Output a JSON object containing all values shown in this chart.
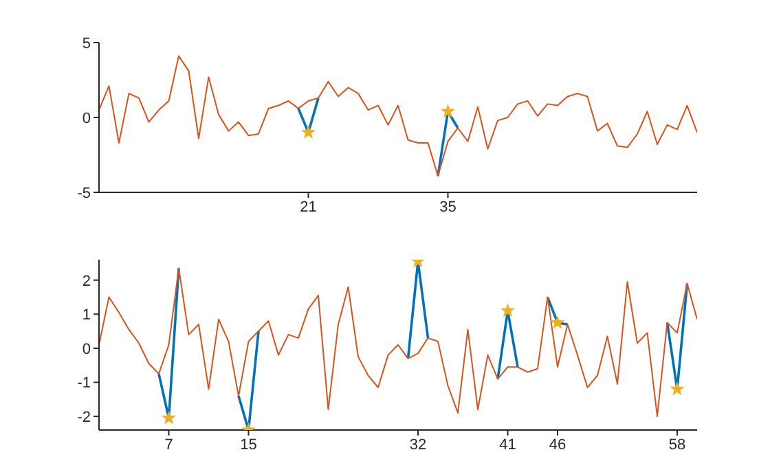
{
  "chart_data": [
    {
      "type": "line",
      "x": [
        0,
        1,
        2,
        3,
        4,
        5,
        6,
        7,
        8,
        9,
        10,
        11,
        12,
        13,
        14,
        15,
        16,
        17,
        18,
        19,
        20,
        21,
        22,
        23,
        24,
        25,
        26,
        27,
        28,
        29,
        30,
        31,
        32,
        33,
        34,
        35,
        36,
        37,
        38,
        39,
        40,
        41,
        42,
        43,
        44,
        45,
        46,
        47,
        48,
        49,
        50,
        51,
        52,
        53,
        54,
        55,
        56,
        57,
        58,
        59,
        60
      ],
      "xlim": [
        0,
        60
      ],
      "xticks": [
        21,
        35
      ],
      "ylim": [
        -5,
        5
      ],
      "yticks": [
        -5,
        0,
        5
      ],
      "series": [
        {
          "color": "#0072bd",
          "values": [
            null,
            null,
            null,
            null,
            null,
            null,
            null,
            null,
            null,
            null,
            null,
            null,
            null,
            null,
            null,
            null,
            null,
            null,
            null,
            null,
            0.6,
            -1.0,
            1.3,
            null,
            null,
            null,
            null,
            null,
            null,
            null,
            null,
            null,
            null,
            null,
            -3.9,
            0.4,
            -0.7,
            null,
            null,
            null,
            null,
            null,
            null,
            null,
            null,
            null,
            null,
            null,
            null,
            null,
            null,
            null,
            null,
            null,
            null,
            null,
            null,
            null,
            null,
            null,
            null
          ]
        },
        {
          "color": "#d95319",
          "values": [
            0.5,
            2.1,
            -1.7,
            1.6,
            1.3,
            -0.3,
            0.5,
            1.1,
            4.1,
            3.1,
            -1.4,
            2.7,
            0.2,
            -0.9,
            -0.3,
            -1.2,
            -1.1,
            0.6,
            0.8,
            1.1,
            0.6,
            1.1,
            1.3,
            2.4,
            1.4,
            2.0,
            1.6,
            0.5,
            0.8,
            -0.5,
            0.8,
            -1.5,
            -1.7,
            -1.7,
            -3.9,
            -1.6,
            -0.7,
            -1.6,
            0.7,
            -2.1,
            -0.2,
            0.0,
            0.9,
            1.1,
            0.1,
            0.9,
            0.8,
            1.4,
            1.6,
            1.4,
            -0.9,
            -0.4,
            -1.9,
            -2.0,
            -1.1,
            0.4,
            -1.8,
            -0.5,
            -0.8,
            0.8,
            -1.0
          ]
        },
        {
          "type": "scatter",
          "color": "#edb120",
          "marker": "star",
          "x": [
            21,
            35
          ],
          "values": [
            -1.0,
            0.4
          ]
        }
      ]
    },
    {
      "type": "line",
      "x": [
        0,
        1,
        2,
        3,
        4,
        5,
        6,
        7,
        8,
        9,
        10,
        11,
        12,
        13,
        14,
        15,
        16,
        17,
        18,
        19,
        20,
        21,
        22,
        23,
        24,
        25,
        26,
        27,
        28,
        29,
        30,
        31,
        32,
        33,
        34,
        35,
        36,
        37,
        38,
        39,
        40,
        41,
        42,
        43,
        44,
        45,
        46,
        47,
        48,
        49,
        50,
        51,
        52,
        53,
        54,
        55,
        56,
        57,
        58,
        59,
        60
      ],
      "xlim": [
        0,
        60
      ],
      "xticks": [
        7,
        15,
        32,
        41,
        46,
        58
      ],
      "ylim": [
        -2.4,
        2.6
      ],
      "yticks": [
        -2,
        -1,
        0,
        1,
        2
      ],
      "series": [
        {
          "color": "#0072bd",
          "values": [
            null,
            null,
            null,
            null,
            null,
            null,
            -0.75,
            -2.05,
            2.35,
            null,
            null,
            null,
            null,
            null,
            -1.4,
            -2.4,
            0.5,
            null,
            null,
            null,
            null,
            null,
            null,
            null,
            null,
            null,
            null,
            null,
            null,
            null,
            null,
            -0.3,
            2.55,
            0.3,
            null,
            null,
            null,
            null,
            null,
            null,
            -0.9,
            1.1,
            -0.55,
            null,
            null,
            1.5,
            0.75,
            0.7,
            null,
            null,
            null,
            null,
            null,
            null,
            null,
            null,
            null,
            0.75,
            -1.2,
            1.9,
            null
          ]
        },
        {
          "color": "#d95319",
          "values": [
            0.1,
            1.5,
            1.05,
            0.55,
            0.15,
            -0.45,
            -0.75,
            0.1,
            2.35,
            0.4,
            0.7,
            -1.2,
            0.85,
            0.2,
            -1.4,
            0.2,
            0.5,
            0.8,
            -0.2,
            0.4,
            0.3,
            1.15,
            1.55,
            -1.8,
            0.7,
            1.8,
            -0.25,
            -0.8,
            -1.15,
            -0.2,
            0.1,
            -0.3,
            -0.15,
            0.3,
            0.2,
            -1.1,
            -1.9,
            0.55,
            -1.8,
            -0.2,
            -0.9,
            -0.55,
            -0.55,
            -0.7,
            -0.6,
            1.5,
            -0.55,
            0.7,
            -0.2,
            -1.15,
            -0.8,
            0.35,
            -1.05,
            1.95,
            0.15,
            0.45,
            -2.0,
            0.75,
            0.45,
            1.9,
            0.85
          ]
        },
        {
          "type": "scatter",
          "color": "#edb120",
          "marker": "star",
          "x": [
            7,
            15,
            32,
            41,
            46,
            58
          ],
          "values": [
            -2.05,
            -2.4,
            2.55,
            1.1,
            0.75,
            -1.2
          ]
        }
      ]
    }
  ]
}
